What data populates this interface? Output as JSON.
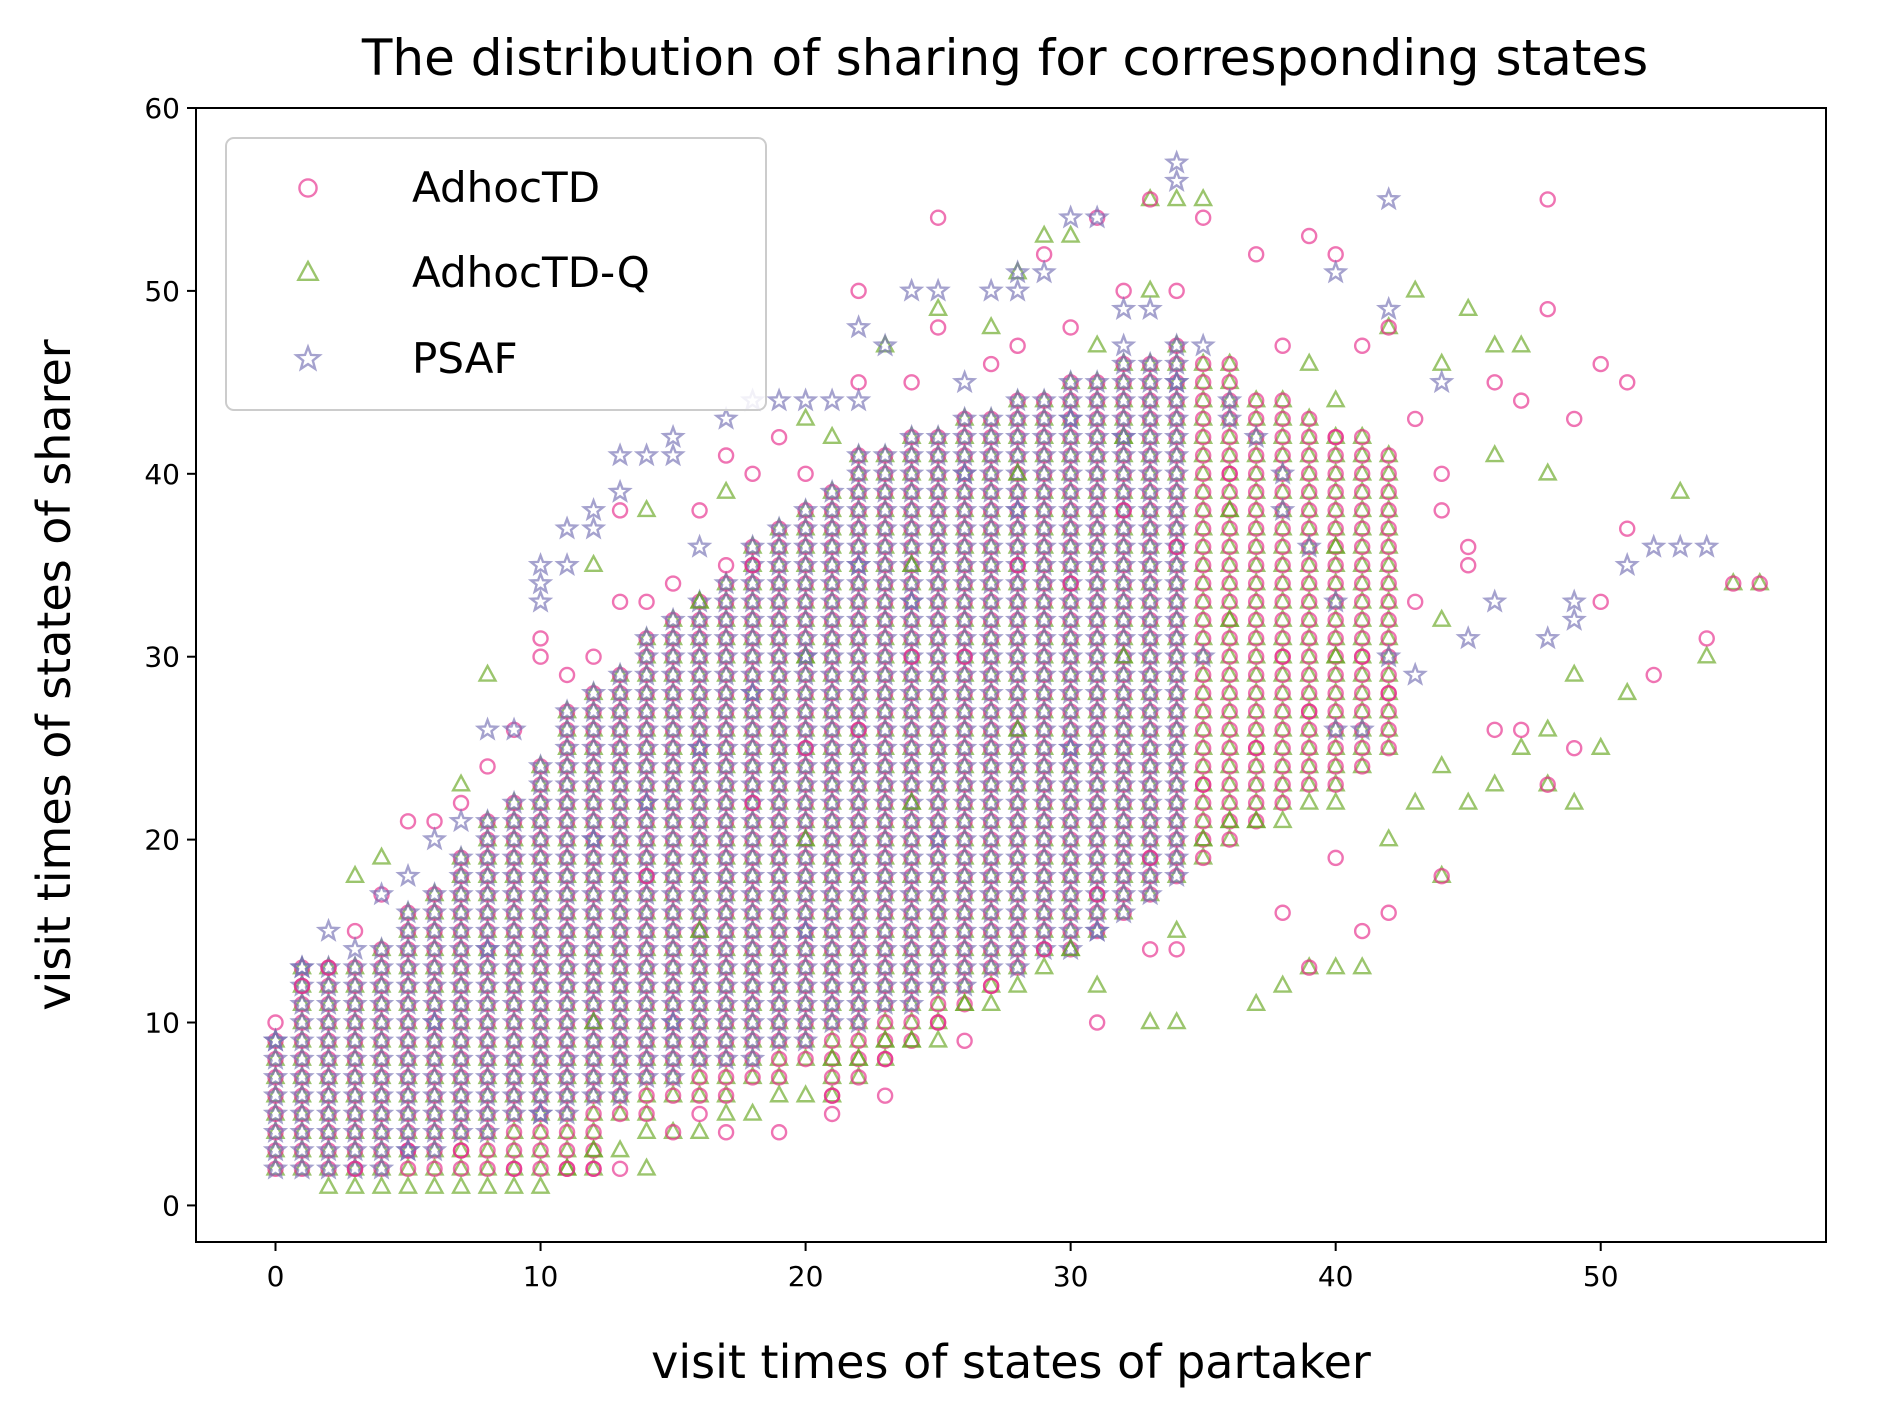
{
  "chart_data": {
    "type": "scatter",
    "title": "The distribution of sharing for corresponding states",
    "xlabel": "visit times of states of partaker",
    "ylabel": "visit times of states of sharer",
    "xlim": [
      -3,
      58.5
    ],
    "ylim": [
      -2,
      60
    ],
    "xticks": [
      0,
      10,
      20,
      30,
      40,
      50
    ],
    "yticks": [
      0,
      10,
      20,
      30,
      40,
      50,
      60
    ],
    "legend_position": "top-left",
    "series": [
      {
        "name": "AdhocTD",
        "marker": "circle",
        "color": "#e7298a",
        "points": [
          [
            0,
            10
          ],
          [
            1,
            12
          ],
          [
            2,
            13
          ],
          [
            3,
            15
          ],
          [
            4,
            17
          ],
          [
            5,
            21
          ],
          [
            6,
            21
          ],
          [
            7,
            22
          ],
          [
            8,
            24
          ],
          [
            9,
            26
          ],
          [
            10,
            30
          ],
          [
            10,
            31
          ],
          [
            11,
            29
          ],
          [
            12,
            30
          ],
          [
            13,
            33
          ],
          [
            13,
            38
          ],
          [
            14,
            33
          ],
          [
            15,
            34
          ],
          [
            16,
            38
          ],
          [
            16,
            5
          ],
          [
            17,
            35
          ],
          [
            17,
            41
          ],
          [
            18,
            35
          ],
          [
            18,
            40
          ],
          [
            19,
            42
          ],
          [
            20,
            40
          ],
          [
            21,
            5
          ],
          [
            22,
            45
          ],
          [
            22,
            50
          ],
          [
            23,
            6
          ],
          [
            24,
            45
          ],
          [
            25,
            48
          ],
          [
            25,
            54
          ],
          [
            26,
            9
          ],
          [
            27,
            46
          ],
          [
            28,
            47
          ],
          [
            29,
            52
          ],
          [
            30,
            48
          ],
          [
            31,
            10
          ],
          [
            31,
            54
          ],
          [
            32,
            50
          ],
          [
            33,
            14
          ],
          [
            33,
            55
          ],
          [
            34,
            14
          ],
          [
            34,
            50
          ],
          [
            35,
            54
          ],
          [
            36,
            46
          ],
          [
            37,
            52
          ],
          [
            38,
            47
          ],
          [
            38,
            16
          ],
          [
            39,
            53
          ],
          [
            39,
            13
          ],
          [
            40,
            52
          ],
          [
            40,
            19
          ],
          [
            41,
            47
          ],
          [
            41,
            15
          ],
          [
            42,
            48
          ],
          [
            42,
            16
          ],
          [
            43,
            43
          ],
          [
            44,
            40
          ],
          [
            44,
            18
          ],
          [
            45,
            35
          ],
          [
            46,
            45
          ],
          [
            46,
            26
          ],
          [
            47,
            44
          ],
          [
            47,
            26
          ],
          [
            48,
            55
          ],
          [
            48,
            49
          ],
          [
            48,
            23
          ],
          [
            49,
            43
          ],
          [
            49,
            25
          ],
          [
            50,
            46
          ],
          [
            50,
            33
          ],
          [
            51,
            45
          ],
          [
            51,
            37
          ],
          [
            52,
            29
          ],
          [
            54,
            31
          ],
          [
            55,
            34
          ],
          [
            56,
            34
          ],
          [
            3,
            2
          ],
          [
            5,
            3
          ],
          [
            7,
            3
          ],
          [
            9,
            2
          ],
          [
            11,
            2
          ],
          [
            12,
            2
          ],
          [
            13,
            2
          ],
          [
            15,
            4
          ],
          [
            17,
            4
          ],
          [
            19,
            4
          ],
          [
            21,
            6
          ],
          [
            23,
            8
          ],
          [
            25,
            10
          ],
          [
            27,
            12
          ],
          [
            29,
            14
          ],
          [
            31,
            17
          ],
          [
            33,
            19
          ],
          [
            35,
            23
          ],
          [
            37,
            25
          ],
          [
            39,
            27
          ],
          [
            41,
            30
          ],
          [
            43,
            33
          ],
          [
            45,
            36
          ],
          [
            20,
            25
          ],
          [
            24,
            30
          ],
          [
            28,
            35
          ],
          [
            32,
            38
          ],
          [
            36,
            40
          ],
          [
            40,
            42
          ],
          [
            44,
            38
          ],
          [
            14,
            18
          ],
          [
            18,
            22
          ],
          [
            22,
            26
          ],
          [
            26,
            30
          ],
          [
            30,
            34
          ],
          [
            34,
            36
          ],
          [
            38,
            30
          ],
          [
            42,
            28
          ]
        ]
      },
      {
        "name": "AdhocTD-Q",
        "marker": "triangle",
        "color": "#66a61e",
        "points": [
          [
            2,
            1
          ],
          [
            3,
            1
          ],
          [
            4,
            1
          ],
          [
            5,
            1
          ],
          [
            6,
            1
          ],
          [
            7,
            1
          ],
          [
            8,
            1
          ],
          [
            9,
            1
          ],
          [
            10,
            1
          ],
          [
            11,
            2
          ],
          [
            12,
            3
          ],
          [
            13,
            3
          ],
          [
            14,
            2
          ],
          [
            14,
            4
          ],
          [
            15,
            4
          ],
          [
            16,
            4
          ],
          [
            17,
            5
          ],
          [
            18,
            5
          ],
          [
            19,
            6
          ],
          [
            20,
            6
          ],
          [
            21,
            8
          ],
          [
            22,
            8
          ],
          [
            23,
            9
          ],
          [
            24,
            9
          ],
          [
            25,
            9
          ],
          [
            26,
            11
          ],
          [
            27,
            11
          ],
          [
            28,
            12
          ],
          [
            29,
            13
          ],
          [
            30,
            14
          ],
          [
            31,
            12
          ],
          [
            33,
            10
          ],
          [
            34,
            10
          ],
          [
            34,
            15
          ],
          [
            35,
            55
          ],
          [
            35,
            20
          ],
          [
            36,
            21
          ],
          [
            37,
            11
          ],
          [
            37,
            21
          ],
          [
            38,
            12
          ],
          [
            38,
            21
          ],
          [
            39,
            13
          ],
          [
            39,
            22
          ],
          [
            40,
            13
          ],
          [
            40,
            22
          ],
          [
            41,
            13
          ],
          [
            42,
            20
          ],
          [
            43,
            22
          ],
          [
            44,
            18
          ],
          [
            44,
            24
          ],
          [
            45,
            22
          ],
          [
            45,
            49
          ],
          [
            46,
            23
          ],
          [
            46,
            47
          ],
          [
            47,
            25
          ],
          [
            47,
            47
          ],
          [
            48,
            26
          ],
          [
            48,
            23
          ],
          [
            49,
            22
          ],
          [
            49,
            29
          ],
          [
            50,
            25
          ],
          [
            51,
            28
          ],
          [
            53,
            39
          ],
          [
            54,
            30
          ],
          [
            55,
            34
          ],
          [
            56,
            34
          ],
          [
            3,
            18
          ],
          [
            4,
            19
          ],
          [
            7,
            23
          ],
          [
            8,
            29
          ],
          [
            12,
            35
          ],
          [
            14,
            38
          ],
          [
            16,
            33
          ],
          [
            17,
            39
          ],
          [
            20,
            43
          ],
          [
            21,
            42
          ],
          [
            23,
            47
          ],
          [
            25,
            49
          ],
          [
            27,
            48
          ],
          [
            28,
            51
          ],
          [
            29,
            53
          ],
          [
            30,
            53
          ],
          [
            31,
            47
          ],
          [
            33,
            50
          ],
          [
            36,
            46
          ],
          [
            39,
            46
          ],
          [
            40,
            44
          ],
          [
            42,
            48
          ],
          [
            43,
            50
          ],
          [
            44,
            46
          ],
          [
            46,
            41
          ],
          [
            48,
            40
          ],
          [
            33,
            55
          ],
          [
            34,
            55
          ],
          [
            20,
            30
          ],
          [
            24,
            35
          ],
          [
            28,
            40
          ],
          [
            32,
            42
          ],
          [
            36,
            38
          ],
          [
            40,
            36
          ],
          [
            44,
            32
          ],
          [
            12,
            10
          ],
          [
            16,
            15
          ],
          [
            20,
            20
          ],
          [
            24,
            22
          ],
          [
            28,
            26
          ],
          [
            32,
            30
          ],
          [
            36,
            32
          ],
          [
            40,
            30
          ]
        ]
      },
      {
        "name": "PSAF",
        "marker": "star",
        "color": "#7570b3",
        "points": [
          [
            0,
            9
          ],
          [
            1,
            13
          ],
          [
            2,
            15
          ],
          [
            3,
            14
          ],
          [
            4,
            17
          ],
          [
            5,
            18
          ],
          [
            6,
            20
          ],
          [
            7,
            21
          ],
          [
            8,
            26
          ],
          [
            9,
            26
          ],
          [
            10,
            33
          ],
          [
            10,
            34
          ],
          [
            10,
            35
          ],
          [
            11,
            35
          ],
          [
            11,
            37
          ],
          [
            12,
            37
          ],
          [
            12,
            38
          ],
          [
            13,
            39
          ],
          [
            13,
            41
          ],
          [
            14,
            41
          ],
          [
            15,
            41
          ],
          [
            15,
            42
          ],
          [
            16,
            36
          ],
          [
            17,
            43
          ],
          [
            18,
            44
          ],
          [
            19,
            44
          ],
          [
            20,
            44
          ],
          [
            21,
            44
          ],
          [
            22,
            44
          ],
          [
            22,
            48
          ],
          [
            23,
            47
          ],
          [
            24,
            50
          ],
          [
            25,
            50
          ],
          [
            26,
            45
          ],
          [
            27,
            50
          ],
          [
            28,
            50
          ],
          [
            28,
            51
          ],
          [
            29,
            51
          ],
          [
            30,
            54
          ],
          [
            31,
            54
          ],
          [
            32,
            47
          ],
          [
            32,
            49
          ],
          [
            33,
            49
          ],
          [
            34,
            56
          ],
          [
            34,
            57
          ],
          [
            35,
            47
          ],
          [
            36,
            44
          ],
          [
            37,
            42
          ],
          [
            38,
            40
          ],
          [
            39,
            36
          ],
          [
            40,
            51
          ],
          [
            40,
            26
          ],
          [
            41,
            26
          ],
          [
            42,
            55
          ],
          [
            42,
            49
          ],
          [
            43,
            29
          ],
          [
            44,
            45
          ],
          [
            45,
            31
          ],
          [
            46,
            33
          ],
          [
            48,
            31
          ],
          [
            49,
            33
          ],
          [
            49,
            32
          ],
          [
            51,
            35
          ],
          [
            52,
            36
          ],
          [
            53,
            36
          ],
          [
            54,
            36
          ],
          [
            31,
            15
          ],
          [
            18,
            8
          ],
          [
            5,
            3
          ],
          [
            10,
            5
          ],
          [
            15,
            10
          ],
          [
            20,
            15
          ],
          [
            25,
            20
          ],
          [
            30,
            25
          ],
          [
            35,
            30
          ],
          [
            12,
            20
          ],
          [
            16,
            25
          ],
          [
            20,
            30
          ],
          [
            24,
            33
          ],
          [
            28,
            38
          ],
          [
            32,
            42
          ],
          [
            36,
            43
          ],
          [
            6,
            10
          ],
          [
            8,
            14
          ],
          [
            14,
            22
          ],
          [
            18,
            28
          ],
          [
            22,
            35
          ],
          [
            26,
            40
          ],
          [
            30,
            43
          ],
          [
            34,
            45
          ],
          [
            38,
            38
          ],
          [
            40,
            33
          ],
          [
            42,
            30
          ]
        ]
      }
    ]
  }
}
